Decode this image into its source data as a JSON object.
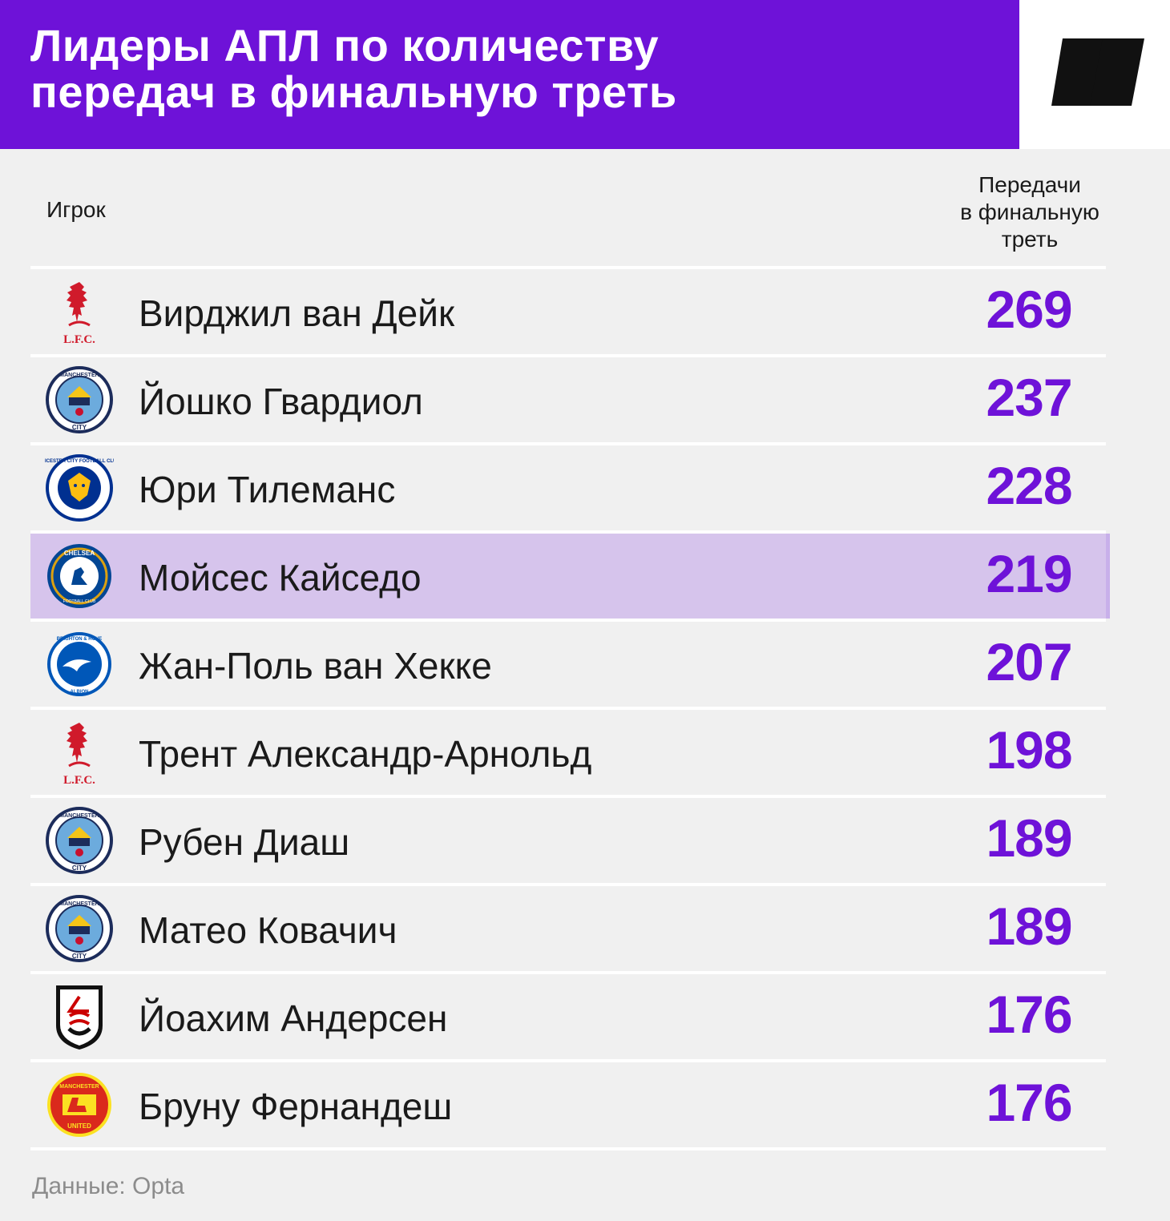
{
  "header": {
    "title": "Лидеры АПЛ по количеству\nпередач в финальную треть",
    "brand_color": "#6e12d8"
  },
  "columns": {
    "player": "Игрок",
    "value": "Передачи\nв финальную\nтреть"
  },
  "chart_data": {
    "type": "table",
    "title": "Лидеры АПЛ по количеству передач в финальную треть",
    "columns": [
      "Игрок",
      "Передачи в финальную треть"
    ],
    "rows": [
      {
        "club_icon": "liverpool-crest-icon",
        "player": "Вирджил ван Дейк",
        "value": 269,
        "highlight": false
      },
      {
        "club_icon": "man-city-crest-icon",
        "player": "Йошко Гвардиол",
        "value": 237,
        "highlight": false
      },
      {
        "club_icon": "leicester-crest-icon",
        "player": "Юри Тилеманс",
        "value": 228,
        "highlight": false
      },
      {
        "club_icon": "chelsea-crest-icon",
        "player": "Мойсес Кайседо",
        "value": 219,
        "highlight": true
      },
      {
        "club_icon": "brighton-crest-icon",
        "player": "Жан-Поль ван Хекке",
        "value": 207,
        "highlight": false
      },
      {
        "club_icon": "liverpool-crest-icon",
        "player": "Трент Александр-Арнольд",
        "value": 198,
        "highlight": false
      },
      {
        "club_icon": "man-city-crest-icon",
        "player": "Рубен Диаш",
        "value": 189,
        "highlight": false
      },
      {
        "club_icon": "man-city-crest-icon",
        "player": "Матео Ковачич",
        "value": 189,
        "highlight": false
      },
      {
        "club_icon": "fulham-crest-icon",
        "player": "Йоахим Андерсен",
        "value": 176,
        "highlight": false
      },
      {
        "club_icon": "man-united-crest-icon",
        "player": "Бруну Фернандеш",
        "value": 176,
        "highlight": false
      }
    ],
    "highlight_color": "#d6c4ec",
    "value_color": "#6e12d8"
  },
  "crest_text": {
    "lfc": "L.F.C.",
    "mcfc_top": "MANCHESTER",
    "mcfc_bottom": "CITY",
    "lcfc_ring": "LEICESTER CITY FOOTBALL CLUB",
    "chelsea_top": "CHELSEA",
    "chelsea_bottom": "FOOTBALL CLUB",
    "brighton_top": "BRIGHTON & HOVE",
    "brighton_bottom": "ALBION",
    "mufc_top": "MANCHESTER",
    "mufc_bottom": "UNITED"
  },
  "footer": {
    "source": "Данные: Opta"
  }
}
